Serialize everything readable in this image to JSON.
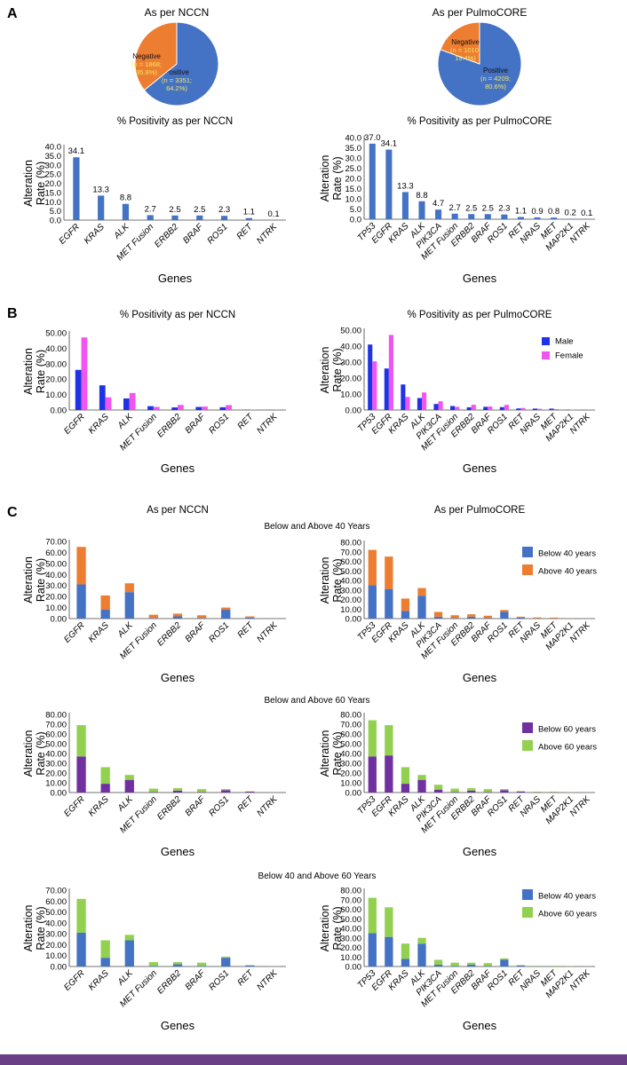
{
  "colors": {
    "blue": "#4472c4",
    "orange": "#ed7d31",
    "male": "#1f33e6",
    "female": "#f055f0",
    "purple": "#7030a0",
    "green": "#92d050",
    "pie_label": "#f5e663",
    "bar_accent": "#6b3f86"
  },
  "panel_labels": [
    "A",
    "B",
    "C"
  ],
  "section_c_subtitles": [
    "Below and Above 40 Years",
    "Below and Above 60 Years",
    "Below 40 and Above 60 Years"
  ],
  "chart_data": [
    {
      "id": "pie-nccn",
      "type": "pie",
      "title": "As per NCCN",
      "slices": [
        {
          "name": "Positive",
          "label": [
            "Positive",
            "(n = 3351;",
            "64.2%)"
          ],
          "value": 64.2,
          "color": "#4472c4"
        },
        {
          "name": "Negative",
          "label": [
            "Negative",
            "(n = 1868;",
            "35.8%)"
          ],
          "value": 35.8,
          "color": "#ed7d31"
        }
      ]
    },
    {
      "id": "pie-pulmocore",
      "type": "pie",
      "title": "As per PulmoCORE",
      "slices": [
        {
          "name": "Positive",
          "label": [
            "Positive",
            "(n = 4209;",
            "80.6%)"
          ],
          "value": 80.6,
          "color": "#4472c4"
        },
        {
          "name": "Negative",
          "label": [
            "Negative",
            "(n = 1010;",
            "19.4%)"
          ],
          "value": 19.4,
          "color": "#ed7d31"
        }
      ]
    },
    {
      "id": "a-nccn",
      "type": "bar",
      "title": "% Positivity as per NCCN",
      "xlabel": "Genes",
      "ylabel": [
        "Alteration",
        "Rate (%)"
      ],
      "ylim": [
        0,
        40
      ],
      "yticks": [
        "0.0",
        "5.0",
        "10.0",
        "15.0",
        "20.0",
        "25.0",
        "30.0",
        "35.0",
        "40.0"
      ],
      "categories": [
        "EGFR",
        "KRAS",
        "ALK",
        "MET Fusion",
        "ERBB2",
        "BRAF",
        "ROS1",
        "RET",
        "NTRK"
      ],
      "series": [
        {
          "name": "% Positivity",
          "color": "#4472c4",
          "values": [
            34.1,
            13.3,
            8.8,
            2.7,
            2.5,
            2.5,
            2.3,
            1.1,
            0.1
          ]
        }
      ],
      "data_labels": [
        "34.1",
        "13.3",
        "8.8",
        "2.7",
        "2.5",
        "2.5",
        "2.3",
        "1.1",
        "0.1"
      ]
    },
    {
      "id": "a-pulmocore",
      "type": "bar",
      "title": "% Positivity as per PulmoCORE",
      "xlabel": "Genes",
      "ylabel": [
        "Alteration",
        "Rate (%)"
      ],
      "ylim": [
        0,
        40
      ],
      "yticks": [
        "0.0",
        "5.0",
        "10.0",
        "15.0",
        "20.0",
        "25.0",
        "30.0",
        "35.0",
        "40.0"
      ],
      "categories": [
        "TP53",
        "EGFR",
        "KRAS",
        "ALK",
        "PIK3CA",
        "MET Fusion",
        "ERBB2",
        "BRAF",
        "ROS1",
        "RET",
        "NRAS",
        "MET",
        "MAP2K1",
        "NTRK"
      ],
      "series": [
        {
          "name": "% Positivity",
          "color": "#4472c4",
          "values": [
            37.0,
            34.1,
            13.3,
            8.8,
            4.7,
            2.7,
            2.5,
            2.5,
            2.3,
            1.1,
            0.9,
            0.8,
            0.2,
            0.1
          ]
        }
      ],
      "data_labels": [
        "37.0",
        "34.1",
        "13.3",
        "8.8",
        "4.7",
        "2.7",
        "2.5",
        "2.5",
        "2.3",
        "1.1",
        "0.9",
        "0.8",
        "0.2",
        "0.1"
      ]
    },
    {
      "id": "b-nccn",
      "type": "grouped-bar",
      "title": "% Positivity as per NCCN",
      "xlabel": "Genes",
      "ylabel": [
        "Alteration",
        "Rate (%)"
      ],
      "ylim": [
        0,
        50
      ],
      "yticks": [
        "0.00",
        "10.00",
        "20.00",
        "30.00",
        "40.00",
        "50.00"
      ],
      "categories": [
        "EGFR",
        "KRAS",
        "ALK",
        "MET Fusion",
        "ERBB2",
        "BRAF",
        "ROS1",
        "RET",
        "NTRK"
      ],
      "series": [
        {
          "name": "Male",
          "color": "#1f33e6",
          "values": [
            26.0,
            16.0,
            7.5,
            2.5,
            1.7,
            2.0,
            1.8,
            0.2,
            0.1
          ]
        },
        {
          "name": "Female",
          "color": "#f055f0",
          "values": [
            47.0,
            8.2,
            11.0,
            2.0,
            3.3,
            2.2,
            3.2,
            0.2,
            0.1
          ]
        }
      ]
    },
    {
      "id": "b-pulmocore",
      "type": "grouped-bar",
      "title": "% Positivity as per PulmoCORE",
      "xlabel": "Genes",
      "ylabel": [
        "Alteration",
        "Rate (%)"
      ],
      "ylim": [
        0,
        50
      ],
      "yticks": [
        "0.00",
        "10.00",
        "20.00",
        "30.00",
        "40.00",
        "50.00"
      ],
      "categories": [
        "TP53",
        "EGFR",
        "KRAS",
        "ALK",
        "PIK3CA",
        "MET Fusion",
        "ERBB2",
        "BRAF",
        "ROS1",
        "RET",
        "NRAS",
        "MET",
        "MAP2K1",
        "NTRK"
      ],
      "series": [
        {
          "name": "Male",
          "color": "#1f33e6",
          "values": [
            41.0,
            26.0,
            16.0,
            7.5,
            3.8,
            2.5,
            1.7,
            2.0,
            1.8,
            1.0,
            0.9,
            0.9,
            0.2,
            0.1
          ]
        },
        {
          "name": "Female",
          "color": "#f055f0",
          "values": [
            30.5,
            47.0,
            8.2,
            11.0,
            5.5,
            2.0,
            3.3,
            2.2,
            3.2,
            1.3,
            0.8,
            0.6,
            0.2,
            0.1
          ]
        }
      ],
      "legend": "right"
    },
    {
      "id": "c1-nccn",
      "type": "stacked-bar",
      "title": "As per NCCN",
      "xlabel": "Genes",
      "ylabel": [
        "Alteration",
        "Rate (%)"
      ],
      "ylim": [
        0,
        70
      ],
      "yticks": [
        "0.00",
        "10.00",
        "20.00",
        "30.00",
        "40.00",
        "50.00",
        "60.00",
        "70.00"
      ],
      "categories": [
        "EGFR",
        "KRAS",
        "ALK",
        "MET Fusion",
        "ERBB2",
        "BRAF",
        "ROS1",
        "RET",
        "NTRK"
      ],
      "series": [
        {
          "name": "Below 40 years",
          "color": "#4472c4",
          "values": [
            31.0,
            8.0,
            24.0,
            0.5,
            2.0,
            0.5,
            8.0,
            1.0,
            0.0
          ]
        },
        {
          "name": "Above 40 years",
          "color": "#ed7d31",
          "values": [
            34.0,
            13.0,
            8.0,
            3.0,
            2.5,
            2.5,
            2.0,
            1.0,
            0.1
          ]
        }
      ]
    },
    {
      "id": "c1-pulmocore",
      "type": "stacked-bar",
      "title": "As per PulmoCORE",
      "xlabel": "Genes",
      "ylabel": [
        "Alteration",
        "Rate (%)"
      ],
      "ylim": [
        0,
        80
      ],
      "yticks": [
        "0.00",
        "10.00",
        "20.00",
        "30.00",
        "40.00",
        "50.00",
        "60.00",
        "70.00",
        "80.00"
      ],
      "categories": [
        "TP53",
        "EGFR",
        "KRAS",
        "ALK",
        "PIK3CA",
        "MET Fusion",
        "ERBB2",
        "BRAF",
        "ROS1",
        "RET",
        "NRAS",
        "MET",
        "MAP2K1",
        "NTRK"
      ],
      "series": [
        {
          "name": "Below 40 years",
          "color": "#4472c4",
          "values": [
            35.0,
            31.0,
            8.0,
            24.0,
            2.0,
            0.5,
            2.0,
            0.5,
            7.0,
            1.0,
            0.2,
            0.2,
            0.0,
            0.0
          ]
        },
        {
          "name": "Above 40 years",
          "color": "#ed7d31",
          "values": [
            37.0,
            34.0,
            13.0,
            8.0,
            5.0,
            3.0,
            2.5,
            2.5,
            2.0,
            1.0,
            1.0,
            0.8,
            0.2,
            0.1
          ]
        }
      ],
      "legend": "right"
    },
    {
      "id": "c2-nccn",
      "type": "stacked-bar",
      "title": "",
      "xlabel": "Genes",
      "ylabel": [
        "Alteration",
        "Rate (%)"
      ],
      "ylim": [
        0,
        80
      ],
      "yticks": [
        "0.00",
        "10.00",
        "20.00",
        "30.00",
        "40.00",
        "50.00",
        "60.00",
        "70.00",
        "80.00"
      ],
      "categories": [
        "EGFR",
        "KRAS",
        "ALK",
        "MET Fusion",
        "ERBB2",
        "BRAF",
        "ROS1",
        "RET",
        "NTRK"
      ],
      "series": [
        {
          "name": "Below 60 years",
          "color": "#7030a0",
          "values": [
            37.0,
            9.0,
            13.0,
            0.5,
            2.0,
            0.5,
            2.5,
            1.0,
            0.0
          ]
        },
        {
          "name": "Above 60 years",
          "color": "#92d050",
          "values": [
            32.0,
            17.0,
            5.0,
            3.5,
            2.5,
            3.0,
            1.0,
            0.2,
            0.1
          ]
        }
      ]
    },
    {
      "id": "c2-pulmocore",
      "type": "stacked-bar",
      "title": "",
      "xlabel": "Genes",
      "ylabel": [
        "Alteration",
        "Rate (%)"
      ],
      "ylim": [
        0,
        80
      ],
      "yticks": [
        "0.00",
        "10.00",
        "20.00",
        "30.00",
        "40.00",
        "50.00",
        "60.00",
        "70.00",
        "80.00"
      ],
      "categories": [
        "TP53",
        "EGFR",
        "KRAS",
        "ALK",
        "PIK3CA",
        "MET Fusion",
        "ERBB2",
        "BRAF",
        "ROS1",
        "RET",
        "NRAS",
        "MET",
        "MAP2K1",
        "NTRK"
      ],
      "series": [
        {
          "name": "Below 60 years",
          "color": "#7030a0",
          "values": [
            37.0,
            38.0,
            9.0,
            13.0,
            3.0,
            0.5,
            2.0,
            0.5,
            2.5,
            1.0,
            0.3,
            0.3,
            0.1,
            0.0
          ]
        },
        {
          "name": "Above 60 years",
          "color": "#92d050",
          "values": [
            37.0,
            31.0,
            17.0,
            5.0,
            5.0,
            3.5,
            2.5,
            3.0,
            1.0,
            0.5,
            0.5,
            0.5,
            0.2,
            0.1
          ]
        }
      ],
      "legend": "right"
    },
    {
      "id": "c3-nccn",
      "type": "stacked-bar",
      "title": "",
      "xlabel": "Genes",
      "ylabel": [
        "Alteration",
        "Rate (%)"
      ],
      "ylim": [
        0,
        70
      ],
      "yticks": [
        "0.00",
        "10.00",
        "20.00",
        "30.00",
        "40.00",
        "50.00",
        "60.00",
        "70.00"
      ],
      "categories": [
        "EGFR",
        "KRAS",
        "ALK",
        "MET Fusion",
        "ERBB2",
        "BRAF",
        "ROS1",
        "RET",
        "NTRK"
      ],
      "series": [
        {
          "name": "Below 40 years",
          "color": "#4472c4",
          "values": [
            31.0,
            8.0,
            24.0,
            0.5,
            2.0,
            0.5,
            8.0,
            1.0,
            0.0
          ]
        },
        {
          "name": "Above 60 years",
          "color": "#92d050",
          "values": [
            31.0,
            16.0,
            5.0,
            3.5,
            2.0,
            3.0,
            1.0,
            0.3,
            0.1
          ]
        }
      ]
    },
    {
      "id": "c3-pulmocore",
      "type": "stacked-bar",
      "title": "",
      "xlabel": "Genes",
      "ylabel": [
        "Alteration",
        "Rate (%)"
      ],
      "ylim": [
        0,
        80
      ],
      "yticks": [
        "0.00",
        "10.00",
        "20.00",
        "30.00",
        "40.00",
        "50.00",
        "60.00",
        "70.00",
        "80.00"
      ],
      "categories": [
        "TP53",
        "EGFR",
        "KRAS",
        "ALK",
        "PIK3CA",
        "MET Fusion",
        "ERBB2",
        "BRAF",
        "ROS1",
        "RET",
        "NRAS",
        "MET",
        "MAP2K1",
        "NTRK"
      ],
      "series": [
        {
          "name": "Below 40 years",
          "color": "#4472c4",
          "values": [
            35.0,
            31.0,
            8.0,
            24.0,
            2.0,
            0.5,
            2.0,
            0.5,
            7.0,
            1.0,
            0.2,
            0.2,
            0.0,
            0.0
          ]
        },
        {
          "name": "Above 60 years",
          "color": "#92d050",
          "values": [
            37.0,
            31.0,
            16.0,
            6.0,
            5.0,
            3.5,
            2.0,
            3.0,
            1.5,
            0.5,
            0.5,
            0.5,
            0.2,
            0.1
          ]
        }
      ],
      "legend": "right"
    }
  ]
}
